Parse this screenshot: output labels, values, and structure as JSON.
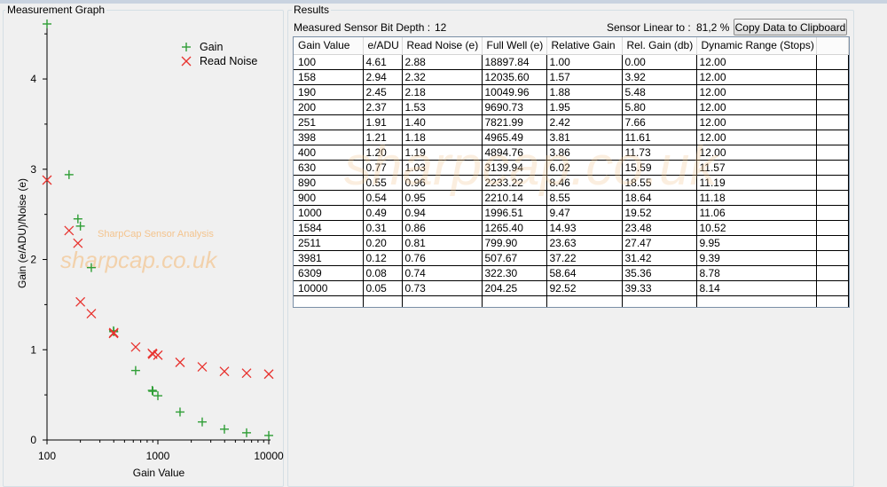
{
  "graph": {
    "title": "Measurement Graph",
    "watermark_title": "SharpCap Sensor Analysis",
    "watermark_url": "sharpcap.co.uk"
  },
  "chart_data": {
    "type": "scatter",
    "xlabel": "Gain Value",
    "ylabel": "Gain (e/ADU)/Noise (e)",
    "x_scale": "log",
    "xlim": [
      100,
      10000
    ],
    "ylim": [
      0,
      4.6
    ],
    "x_ticks": [
      "100",
      "1000",
      "10000"
    ],
    "y_ticks": [
      "0",
      "1",
      "2",
      "3",
      "4"
    ],
    "legend_position": "top-right",
    "x": [
      100,
      158,
      190,
      200,
      251,
      398,
      400,
      630,
      890,
      900,
      1000,
      1584,
      2511,
      3981,
      6309,
      10000
    ],
    "series": [
      {
        "name": "Gain",
        "marker": "plus",
        "color": "#2f9e36",
        "values": [
          4.61,
          2.94,
          2.45,
          2.37,
          1.91,
          1.21,
          1.2,
          0.77,
          0.55,
          0.54,
          0.49,
          0.31,
          0.2,
          0.12,
          0.08,
          0.05
        ]
      },
      {
        "name": "Read Noise",
        "marker": "x",
        "color": "#e8332f",
        "values": [
          2.88,
          2.32,
          2.18,
          1.53,
          1.4,
          1.18,
          1.19,
          1.03,
          0.96,
          0.95,
          0.94,
          0.86,
          0.81,
          0.76,
          0.74,
          0.73
        ]
      }
    ]
  },
  "results": {
    "title": "Results",
    "bit_depth_label": "Measured Sensor Bit Depth :",
    "bit_depth_value": "12",
    "linear_label": "Sensor Linear to :",
    "linear_value": "81,2 %",
    "copy_button": "Copy Data to Clipboard",
    "watermark_url": "sharpcap.co.uk"
  },
  "table": {
    "columns": [
      "Gain Value",
      "e/ADU",
      "Read Noise (e)",
      "Full Well (e)",
      "Relative Gain",
      "Rel. Gain (db)",
      "Dynamic Range (Stops)"
    ],
    "rows": [
      [
        "100",
        "4.61",
        "2.88",
        "18897.84",
        "1.00",
        "0.00",
        "12.00"
      ],
      [
        "158",
        "2.94",
        "2.32",
        "12035.60",
        "1.57",
        "3.92",
        "12.00"
      ],
      [
        "190",
        "2.45",
        "2.18",
        "10049.96",
        "1.88",
        "5.48",
        "12.00"
      ],
      [
        "200",
        "2.37",
        "1.53",
        "9690.73",
        "1.95",
        "5.80",
        "12.00"
      ],
      [
        "251",
        "1.91",
        "1.40",
        "7821.99",
        "2.42",
        "7.66",
        "12.00"
      ],
      [
        "398",
        "1.21",
        "1.18",
        "4965.49",
        "3.81",
        "11.61",
        "12.00"
      ],
      [
        "400",
        "1.20",
        "1.19",
        "4894.76",
        "3.86",
        "11.73",
        "12.00"
      ],
      [
        "630",
        "0.77",
        "1.03",
        "3139.94",
        "6.02",
        "15.59",
        "11.57"
      ],
      [
        "890",
        "0.55",
        "0.96",
        "2233.22",
        "8.46",
        "18.55",
        "11.19"
      ],
      [
        "900",
        "0.54",
        "0.95",
        "2210.14",
        "8.55",
        "18.64",
        "11.18"
      ],
      [
        "1000",
        "0.49",
        "0.94",
        "1996.51",
        "9.47",
        "19.52",
        "11.06"
      ],
      [
        "1584",
        "0.31",
        "0.86",
        "1265.40",
        "14.93",
        "23.48",
        "10.52"
      ],
      [
        "2511",
        "0.20",
        "0.81",
        "799.90",
        "23.63",
        "27.47",
        "9.95"
      ],
      [
        "3981",
        "0.12",
        "0.76",
        "507.67",
        "37.22",
        "31.42",
        "9.39"
      ],
      [
        "6309",
        "0.08",
        "0.74",
        "322.30",
        "58.64",
        "35.36",
        "8.78"
      ],
      [
        "10000",
        "0.05",
        "0.73",
        "204.25",
        "92.52",
        "39.33",
        "8.14"
      ]
    ]
  }
}
